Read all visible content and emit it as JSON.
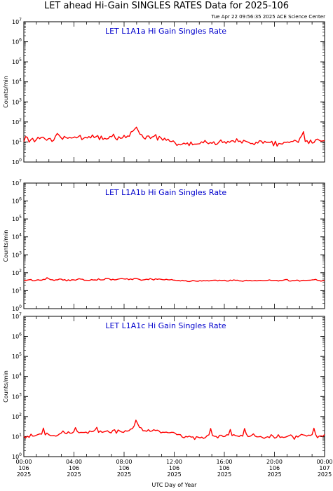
{
  "header": {
    "title": "LET ahead Hi-Gain SINGLES RATES Data for 2025-106",
    "timestamp": "Tue Apr 22 09:56:35 2025 ACE Science Center"
  },
  "colors": {
    "trace": "#ff0000",
    "panel_title": "#0000cc",
    "axis": "#000000",
    "background": "#ffffff"
  },
  "chart_data": [
    {
      "type": "line",
      "title": "LET L1A1a Hi Gain Singles Rate",
      "ylabel": "Counts/min",
      "yscale": "log",
      "ylim": [
        1,
        10000000
      ],
      "xlim": [
        0,
        24
      ],
      "series": [
        {
          "values": [
            10.4,
            18.5,
            17.1,
            9.9,
            13.1,
            15.2,
            10.3,
            12.8,
            17.4,
            14.5,
            17.2,
            17.3,
            14.3,
            12.2,
            14.6,
            15.1,
            10.7,
            12.2,
            19.8,
            26.5,
            21.9,
            16.9,
            13.5,
            19.1,
            16.6,
            15.2,
            16.9,
            15.8,
            16.4,
            17.9,
            16.0,
            18.4,
            21.5,
            13.1,
            15.2,
            17.4,
            15.7,
            18.6,
            16.0,
            22.4,
            16.5,
            18.3,
            21.0,
            13.0,
            19.7,
            13.4,
            15.4,
            13.9,
            14.9,
            19.0,
            18.2,
            24.6,
            15.4,
            12.7,
            18.4,
            15.1,
            15.9,
            21.6,
            16.3,
            20.0,
            19.3,
            32.3,
            34.5,
            43.7,
            55.0,
            37.1,
            24.5,
            23.2,
            16.2,
            14.1,
            19.5,
            20.0,
            14.9,
            17.7,
            19.1,
            23.3,
            12.4,
            19.0,
            15.9,
            12.2,
            15.5,
            12.2,
            13.9,
            10.9,
            10.5,
            11.4,
            9.0,
            6.7,
            7.8,
            7.2,
            7.8,
            8.8,
            7.9,
            9.0,
            6.6,
            10.0,
            7.2,
            7.9,
            7.8,
            8.0,
            8.2,
            10.2,
            9.1,
            12.0,
            9.3,
            8.2,
            9.3,
            8.6,
            10.3,
            7.3,
            8.0,
            10.0,
            12.7,
            9.3,
            10.4,
            8.5,
            10.8,
            9.6,
            11.4,
            11.6,
            9.6,
            14.5,
            10.6,
            11.1,
            8.8,
            12.2,
            11.0,
            10.3,
            9.4,
            8.3,
            8.5,
            7.3,
            9.7,
            8.8,
            11.6,
            11.1,
            8.6,
            10.8,
            9.5,
            9.7,
            9.4,
            10.9,
            6.5,
            10.9,
            6.2,
            8.5,
            8.1,
            7.9,
            9.8,
            9.5,
            10.0,
            9.4,
            10.6,
            10.6,
            12.4,
            11.0,
            9.5,
            15.8,
            20.8,
            32.7,
            10.6,
            11.7,
            8.3,
            12.6,
            8.8,
            9.3,
            13.1,
            14.0,
            12.1,
            11.0,
            11.4,
            11.7
          ]
        }
      ]
    },
    {
      "type": "line",
      "title": "LET L1A1b Hi Gain Singles Rate",
      "ylabel": "Counts/min",
      "yscale": "log",
      "ylim": [
        1,
        10000000
      ],
      "xlim": [
        0,
        24
      ],
      "series": [
        {
          "values": [
            38.7,
            37.4,
            38.9,
            40.8,
            41.8,
            35.6,
            35.8,
            38.8,
            40.9,
            38.4,
            38.2,
            42.9,
            42.5,
            53.1,
            46.6,
            41.2,
            40.9,
            37.2,
            40.6,
            40.3,
            45.3,
            44.1,
            38.8,
            41.5,
            35.2,
            40.6,
            36.4,
            40.8,
            40.4,
            38.5,
            42.5,
            46.6,
            44.1,
            43.6,
            38.4,
            38.1,
            37.5,
            37.8,
            41.6,
            39.3,
            40.3,
            38.6,
            46.2,
            39.9,
            39.6,
            41.0,
            48.2,
            48.4,
            46.2,
            39.3,
            43.1,
            40.0,
            41.3,
            44.3,
            46.2,
            47.4,
            45.6,
            44.4,
            46.7,
            41.0,
            45.7,
            41.4,
            47.5,
            48.3,
            45.4,
            42.3,
            38.0,
            39.7,
            41.3,
            43.5,
            41.3,
            47.5,
            43.5,
            39.5,
            46.5,
            42.6,
            45.0,
            43.1,
            41.2,
            40.6,
            43.3,
            40.7,
            40.3,
            41.8,
            39.0,
            38.3,
            36.6,
            37.2,
            34.6,
            38.0,
            35.3,
            36.0,
            33.0,
            32.4,
            34.2,
            37.3,
            35.5,
            33.8,
            33.4,
            36.6,
            34.4,
            36.2,
            35.3,
            36.3,
            34.8,
            36.5,
            37.8,
            38.8,
            38.5,
            35.0,
            38.7,
            36.6,
            37.6,
            37.9,
            34.4,
            34.4,
            39.2,
            36.8,
            40.0,
            37.7,
            38.6,
            35.5,
            35.2,
            33.1,
            36.1,
            38.1,
            35.6,
            37.5,
            35.3,
            35.6,
            36.5,
            35.4,
            37.4,
            37.5,
            36.2,
            36.4,
            37.0,
            37.5,
            40.2,
            37.3,
            37.4,
            37.7,
            37.5,
            34.3,
            37.4,
            36.5,
            38.9,
            41.5,
            42.4,
            34.6,
            34.3,
            36.8,
            36.1,
            38.5,
            38.2,
            33.8,
            36.6,
            37.9,
            37.3,
            37.8,
            38.1,
            38.2,
            40.3,
            40.9,
            42.6,
            37.9,
            37.0,
            34.1,
            36.8,
            36.0
          ]
        }
      ]
    },
    {
      "type": "line",
      "title": "LET L1A1c Hi Gain Singles Rate",
      "ylabel": "Counts/min",
      "yscale": "log",
      "ylim": [
        1,
        10000000
      ],
      "xlim": [
        0,
        24
      ],
      "xlabel": "UTC Day of Year",
      "x_tick_labels": [
        [
          "00:00",
          "106",
          "2025"
        ],
        [
          "04:00",
          "106",
          "2025"
        ],
        [
          "08:00",
          "106",
          "2025"
        ],
        [
          "12:00",
          "106",
          "2025"
        ],
        [
          "16:00",
          "106",
          "2025"
        ],
        [
          "20:00",
          "106",
          "2025"
        ],
        [
          "00:00",
          "107",
          "2025"
        ]
      ],
      "series": [
        {
          "values": [
            10.4,
            8.6,
            10.5,
            9.2,
            13.2,
            10.5,
            10.7,
            11.7,
            12.8,
            13.6,
            13.3,
            26.5,
            12.2,
            15.0,
            12.6,
            11.2,
            11.1,
            11.2,
            10.5,
            11.5,
            13.5,
            15.0,
            19.1,
            15.1,
            13.8,
            17.5,
            14.8,
            14.8,
            17.2,
            28.0,
            18.1,
            15.5,
            16.3,
            16.0,
            16.0,
            16.6,
            14.4,
            19.1,
            17.6,
            18.2,
            21.4,
            28.8,
            16.2,
            19.3,
            16.1,
            17.2,
            18.4,
            19.5,
            16.5,
            15.3,
            20.4,
            21.9,
            14.6,
            21.4,
            18.8,
            16.9,
            16.1,
            19.7,
            18.6,
            19.5,
            23.6,
            25.0,
            34.3,
            66.2,
            42.6,
            28.9,
            27.3,
            19.4,
            19.6,
            18.3,
            22.3,
            18.2,
            19.1,
            22.0,
            20.0,
            20.8,
            19.0,
            15.4,
            16.5,
            16.3,
            16.6,
            15.7,
            15.6,
            16.4,
            16.3,
            14.8,
            12.5,
            12.8,
            12.5,
            9.5,
            8.7,
            10.2,
            9.6,
            10.6,
            9.4,
            9.7,
            7.2,
            9.9,
            9.3,
            8.6,
            9.4,
            8.1,
            8.9,
            11.2,
            12.2,
            25.4,
            11.4,
            10.4,
            10.2,
            8.5,
            11.6,
            11.6,
            10.0,
            10.2,
            12.4,
            12.2,
            22.6,
            11.2,
            12.6,
            11.0,
            10.7,
            10.1,
            11.7,
            10.5,
            25.4,
            13.6,
            10.0,
            10.3,
            11.5,
            13.7,
            10.6,
            9.7,
            9.8,
            10.1,
            9.1,
            8.1,
            9.2,
            9.9,
            8.9,
            12.5,
            10.5,
            8.3,
            9.2,
            12.4,
            9.0,
            9.6,
            9.0,
            9.4,
            10.2,
            11.2,
            12.2,
            10.2,
            7.3,
            10.9,
            9.5,
            11.1,
            13.0,
            12.2,
            11.6,
            10.5,
            11.9,
            11.4,
            12.6,
            26.2,
            12.7,
            8.8,
            10.6,
            10.9,
            10.3,
            12.9
          ]
        }
      ]
    }
  ]
}
